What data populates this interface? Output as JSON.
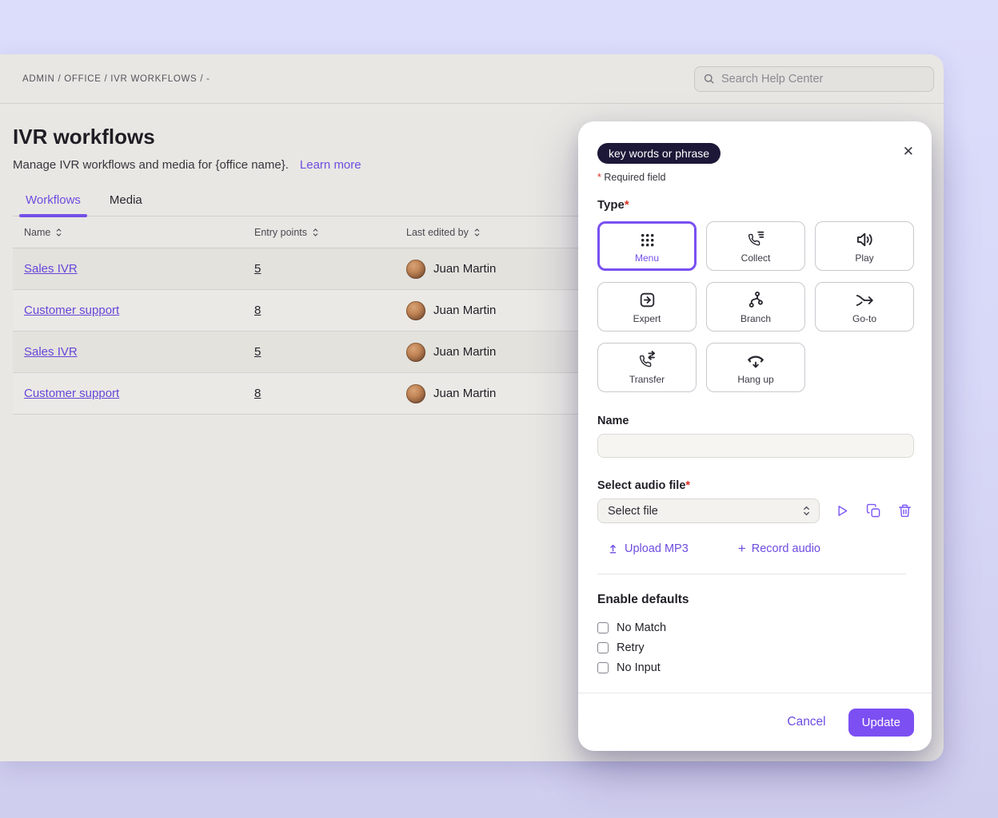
{
  "page": {
    "breadcrumb": "ADMIN / OFFICE / IVR WORKFLOWS / -",
    "search_placeholder": "Search Help Center",
    "title": "IVR workflows",
    "subtitle": "Manage IVR workflows and media for {office name}.",
    "learn_more": "Learn more",
    "tabs": [
      {
        "label": "Workflows",
        "active": true
      },
      {
        "label": "Media",
        "active": false
      }
    ]
  },
  "table": {
    "columns": [
      "Name",
      "Entry points",
      "Last edited by"
    ],
    "rows": [
      {
        "name": "Sales IVR",
        "entry_points": "5",
        "last_edited_by": "Juan Martin"
      },
      {
        "name": "Customer support",
        "entry_points": "8",
        "last_edited_by": "Juan Martin"
      },
      {
        "name": "Sales IVR",
        "entry_points": "5",
        "last_edited_by": "Juan Martin"
      },
      {
        "name": "Customer support",
        "entry_points": "8",
        "last_edited_by": "Juan Martin"
      }
    ]
  },
  "modal": {
    "pill_label": "key words or phrase",
    "close_glyph": "✕",
    "required_mark": "*",
    "required_note": "Required field",
    "type_label": "Type",
    "types": [
      {
        "label": "Menu",
        "icon": "dialpad-icon",
        "selected": true
      },
      {
        "label": "Collect",
        "icon": "phone-collect-icon",
        "selected": false
      },
      {
        "label": "Play",
        "icon": "speaker-icon",
        "selected": false
      },
      {
        "label": "Expert",
        "icon": "expert-box-arrow-icon",
        "selected": false
      },
      {
        "label": "Branch",
        "icon": "branch-icon",
        "selected": false
      },
      {
        "label": "Go-to",
        "icon": "goto-merge-arrow-icon",
        "selected": false
      },
      {
        "label": "Transfer",
        "icon": "phone-transfer-icon",
        "selected": false
      },
      {
        "label": "Hang up",
        "icon": "hang-up-icon",
        "selected": false
      }
    ],
    "name_label": "Name",
    "name_value": "",
    "audio_label": "Select audio file",
    "select_placeholder": "Select file",
    "upload_label": "Upload MP3",
    "record_plus": "+",
    "record_label": "Record audio",
    "defaults_label": "Enable defaults",
    "checkboxes": [
      {
        "label": "No Match",
        "checked": false
      },
      {
        "label": "Retry",
        "checked": false
      },
      {
        "label": "No Input",
        "checked": false
      }
    ],
    "cancel_label": "Cancel",
    "update_label": "Update"
  },
  "colors": {
    "accent_purple": "#7450e8",
    "button_purple": "#7c4ff2",
    "pill_bg": "#1d1838",
    "required_red": "#d93025",
    "card_bg": "#e8e7e3",
    "lavender_top": "#dcddfb",
    "lavender_bottom": "#d0ceee"
  }
}
